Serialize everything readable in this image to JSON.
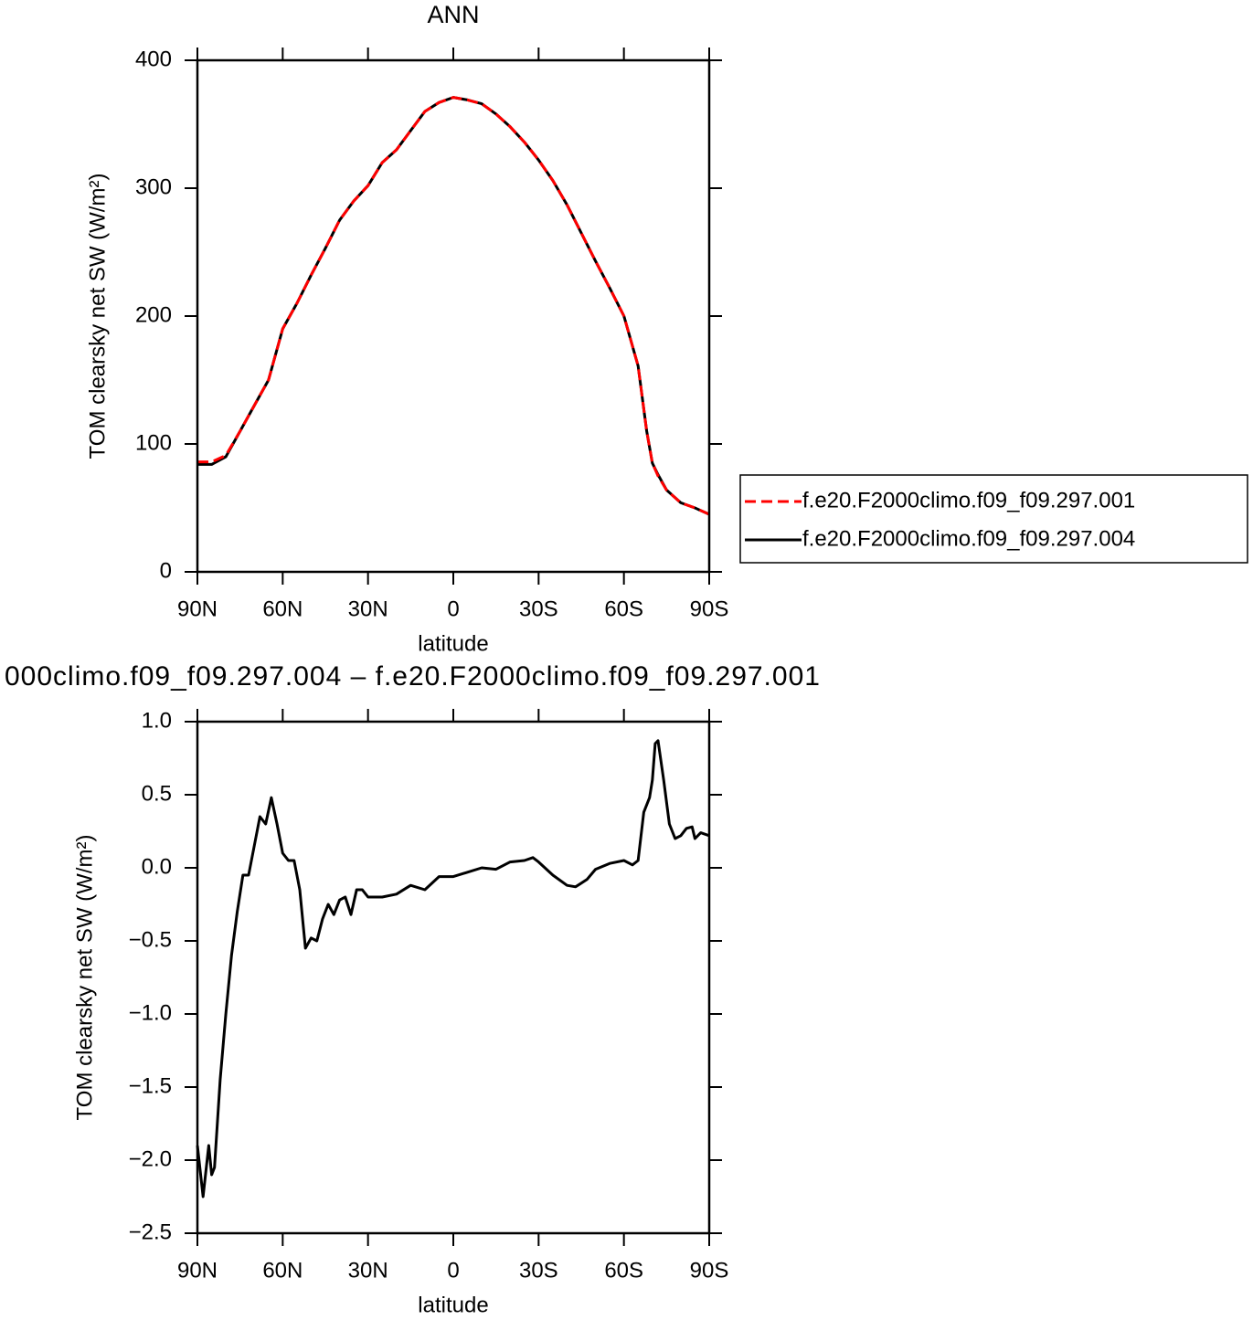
{
  "chart_data": [
    {
      "type": "line",
      "title": "ANN",
      "xlabel": "latitude",
      "ylabel": "TOM clearsky net SW (W/m²)",
      "x": [
        90,
        85,
        80,
        75,
        70,
        65,
        60,
        55,
        50,
        45,
        40,
        35,
        30,
        25,
        20,
        15,
        10,
        5,
        0,
        -5,
        -10,
        -15,
        -20,
        -25,
        -30,
        -35,
        -40,
        -45,
        -50,
        -55,
        -60,
        -65,
        -68,
        -70,
        -72,
        -75,
        -80,
        -85,
        -90
      ],
      "series": [
        {
          "name": "f.e20.F2000climo.f09_f09.297.001",
          "color": "#ff0000",
          "dashed": true,
          "values": [
            86,
            86,
            91,
            110,
            130,
            150,
            190,
            210,
            232,
            253,
            275,
            290,
            302,
            320,
            330,
            345,
            360,
            367,
            371,
            369,
            366,
            358,
            348,
            336,
            322,
            306,
            287,
            265,
            243,
            222,
            200,
            161,
            110,
            85,
            75,
            64,
            54,
            50,
            45
          ]
        },
        {
          "name": "f.e20.F2000climo.f09_f09.297.004",
          "color": "#000000",
          "dashed": false,
          "values": [
            84,
            84,
            90,
            110,
            130,
            150,
            190,
            210,
            232,
            253,
            275,
            290,
            302,
            320,
            330,
            345,
            360,
            367,
            371,
            369,
            366,
            358,
            348,
            336,
            322,
            306,
            287,
            265,
            243,
            222,
            200,
            161,
            110,
            85,
            76,
            64,
            54,
            50,
            45
          ]
        }
      ],
      "xlim": [
        90,
        -90
      ],
      "xticks": [
        {
          "value": 90,
          "label": "90N"
        },
        {
          "value": 60,
          "label": "60N"
        },
        {
          "value": 30,
          "label": "30N"
        },
        0,
        {
          "value": -30,
          "label": "30S"
        },
        {
          "value": -60,
          "label": "60S"
        },
        {
          "value": -90,
          "label": "90S"
        }
      ],
      "ylim": [
        0,
        400
      ],
      "yticks": [
        0,
        100,
        200,
        300,
        400
      ],
      "legend": "right"
    },
    {
      "type": "line",
      "title": "000climo.f09_f09.297.004 – f.e20.F2000climo.f09_f09.297.001",
      "xlabel": "latitude",
      "ylabel": "TOM clearsky net SW (W/m²)",
      "x": [
        90,
        88,
        86,
        85,
        84,
        82,
        80,
        78,
        76,
        74,
        72,
        70,
        68,
        66,
        64,
        62,
        60,
        58,
        56,
        54,
        52,
        50,
        48,
        46,
        44,
        42,
        40,
        38,
        36,
        34,
        32,
        30,
        25,
        20,
        15,
        10,
        5,
        0,
        -5,
        -10,
        -15,
        -20,
        -25,
        -28,
        -30,
        -35,
        -40,
        -43,
        -47,
        -50,
        -55,
        -60,
        -63,
        -65,
        -67,
        -69,
        -70,
        -71,
        -72,
        -74,
        -76,
        -78,
        -80,
        -82,
        -84,
        -85,
        -87,
        -90
      ],
      "series": [
        {
          "color": "#000000",
          "dashed": false,
          "values": [
            -1.9,
            -2.25,
            -1.9,
            -2.1,
            -2.05,
            -1.45,
            -1.0,
            -0.6,
            -0.3,
            -0.05,
            -0.05,
            0.15,
            0.35,
            0.3,
            0.48,
            0.3,
            0.1,
            0.05,
            0.05,
            -0.15,
            -0.55,
            -0.48,
            -0.5,
            -0.35,
            -0.25,
            -0.32,
            -0.22,
            -0.2,
            -0.32,
            -0.15,
            -0.15,
            -0.2,
            -0.2,
            -0.18,
            -0.12,
            -0.15,
            -0.06,
            -0.06,
            -0.03,
            0.0,
            -0.01,
            0.04,
            0.05,
            0.07,
            0.04,
            -0.05,
            -0.12,
            -0.13,
            -0.08,
            -0.01,
            0.03,
            0.05,
            0.02,
            0.05,
            0.38,
            0.48,
            0.6,
            0.85,
            0.87,
            0.6,
            0.3,
            0.2,
            0.22,
            0.27,
            0.28,
            0.2,
            0.24,
            0.22
          ]
        }
      ],
      "xlim": [
        90,
        -90
      ],
      "xticks": [
        {
          "value": 90,
          "label": "90N"
        },
        {
          "value": 60,
          "label": "60N"
        },
        {
          "value": 30,
          "label": "30N"
        },
        0,
        {
          "value": -30,
          "label": "30S"
        },
        {
          "value": -60,
          "label": "60S"
        },
        {
          "value": -90,
          "label": "90S"
        }
      ],
      "ylim": [
        -2.5,
        1.0
      ],
      "yticks": [
        {
          "value": -2.5,
          "label": "−2.5"
        },
        {
          "value": -2.0,
          "label": "−2.0"
        },
        {
          "value": -1.5,
          "label": "−1.5"
        },
        {
          "value": -1.0,
          "label": "−1.0"
        },
        {
          "value": -0.5,
          "label": "−0.5"
        },
        {
          "value": 0,
          "label": "0.0"
        },
        {
          "value": 0.5,
          "label": "0.5"
        },
        {
          "value": 1.0,
          "label": "1.0"
        }
      ]
    }
  ]
}
